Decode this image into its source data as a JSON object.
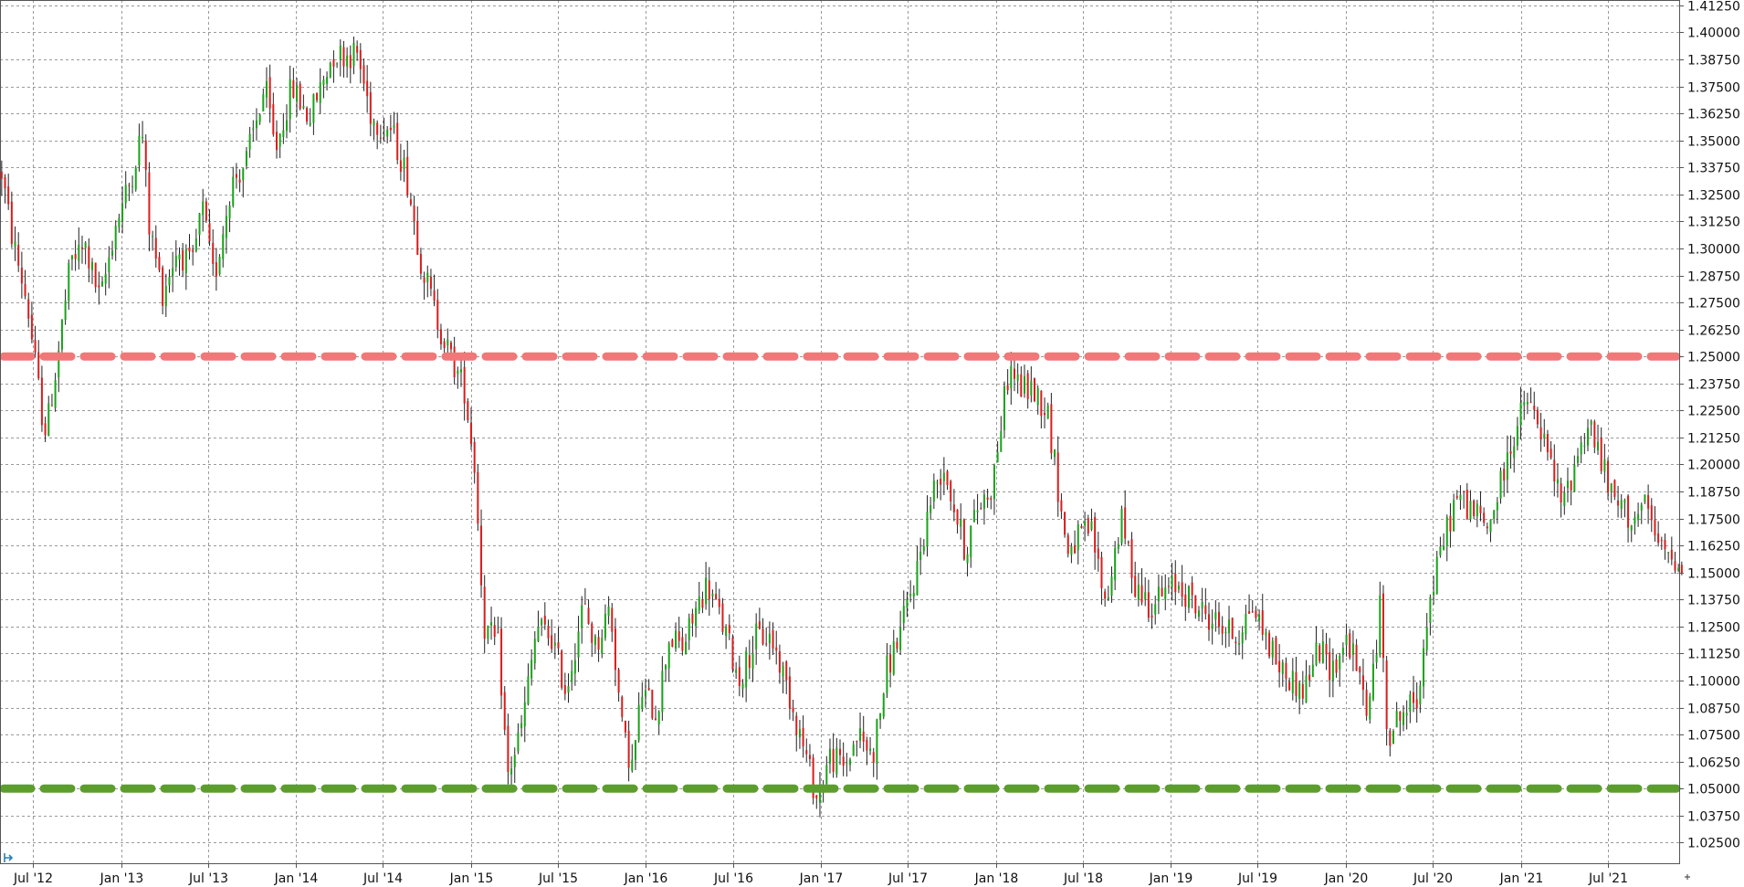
{
  "chart_data": {
    "type": "candlestick",
    "title": "",
    "xlabel": "",
    "ylabel": "",
    "ylim": [
      1.015,
      1.415
    ],
    "grid": true,
    "y_ticks": [
      "1.02500",
      "1.03750",
      "1.05000",
      "1.06250",
      "1.07500",
      "1.08750",
      "1.10000",
      "1.11250",
      "1.12500",
      "1.13750",
      "1.15000",
      "1.16250",
      "1.17500",
      "1.18750",
      "1.20000",
      "1.21250",
      "1.22500",
      "1.23750",
      "1.25000",
      "1.26250",
      "1.27500",
      "1.28750",
      "1.30000",
      "1.31250",
      "1.32500",
      "1.33750",
      "1.35000",
      "1.36250",
      "1.37500",
      "1.38750",
      "1.40000",
      "1.41250"
    ],
    "x_ticks": [
      "Jul '12",
      "Jan '13",
      "Jul '13",
      "Jan '14",
      "Jul '14",
      "Jan '15",
      "Jul '15",
      "Jan '16",
      "Jul '16",
      "Jan '17",
      "Jul '17",
      "Jan '18",
      "Jul '18",
      "Jan '19",
      "Jul '19",
      "Jan '20",
      "Jul '20",
      "Jan '21",
      "Jul '21"
    ],
    "x_range": [
      "2012-04-23",
      "2021-11-29"
    ],
    "up_color": "#1aa31a",
    "down_color": "#d81e1e",
    "close_path": [
      [
        "2012-04-23",
        1.335
      ],
      [
        "2012-05-15",
        1.305
      ],
      [
        "2012-06-15",
        1.275
      ],
      [
        "2012-07-15",
        1.225
      ],
      [
        "2012-07-25",
        1.215
      ],
      [
        "2012-08-15",
        1.245
      ],
      [
        "2012-09-15",
        1.295
      ],
      [
        "2012-10-15",
        1.3
      ],
      [
        "2012-11-15",
        1.275
      ],
      [
        "2012-12-15",
        1.31
      ],
      [
        "2013-01-15",
        1.33
      ],
      [
        "2013-02-10",
        1.355
      ],
      [
        "2013-02-25",
        1.31
      ],
      [
        "2013-03-25",
        1.28
      ],
      [
        "2013-04-25",
        1.3
      ],
      [
        "2013-05-25",
        1.29
      ],
      [
        "2013-06-15",
        1.32
      ],
      [
        "2013-07-10",
        1.285
      ],
      [
        "2013-08-15",
        1.33
      ],
      [
        "2013-09-15",
        1.34
      ],
      [
        "2013-10-25",
        1.375
      ],
      [
        "2013-11-15",
        1.345
      ],
      [
        "2013-12-20",
        1.375
      ],
      [
        "2014-01-25",
        1.36
      ],
      [
        "2014-03-15",
        1.39
      ],
      [
        "2014-05-05",
        1.39
      ],
      [
        "2014-06-05",
        1.36
      ],
      [
        "2014-07-15",
        1.355
      ],
      [
        "2014-08-15",
        1.335
      ],
      [
        "2014-09-15",
        1.295
      ],
      [
        "2014-10-15",
        1.27
      ],
      [
        "2014-11-15",
        1.25
      ],
      [
        "2014-12-15",
        1.235
      ],
      [
        "2015-01-05",
        1.2
      ],
      [
        "2015-01-25",
        1.125
      ],
      [
        "2015-02-25",
        1.115
      ],
      [
        "2015-03-15",
        1.055
      ],
      [
        "2015-04-15",
        1.08
      ],
      [
        "2015-05-15",
        1.125
      ],
      [
        "2015-06-15",
        1.12
      ],
      [
        "2015-07-15",
        1.095
      ],
      [
        "2015-08-20",
        1.135
      ],
      [
        "2015-09-15",
        1.115
      ],
      [
        "2015-10-15",
        1.135
      ],
      [
        "2015-11-10",
        1.075
      ],
      [
        "2015-12-01",
        1.06
      ],
      [
        "2015-12-20",
        1.095
      ],
      [
        "2016-01-20",
        1.085
      ],
      [
        "2016-02-15",
        1.12
      ],
      [
        "2016-03-15",
        1.115
      ],
      [
        "2016-04-15",
        1.135
      ],
      [
        "2016-05-05",
        1.145
      ],
      [
        "2016-06-15",
        1.12
      ],
      [
        "2016-07-10",
        1.1
      ],
      [
        "2016-08-15",
        1.12
      ],
      [
        "2016-09-15",
        1.12
      ],
      [
        "2016-10-15",
        1.1
      ],
      [
        "2016-11-15",
        1.075
      ],
      [
        "2016-12-20",
        1.045
      ],
      [
        "2017-01-15",
        1.065
      ],
      [
        "2017-02-15",
        1.06
      ],
      [
        "2017-03-15",
        1.075
      ],
      [
        "2017-04-15",
        1.065
      ],
      [
        "2017-05-15",
        1.105
      ],
      [
        "2017-06-15",
        1.125
      ],
      [
        "2017-07-15",
        1.15
      ],
      [
        "2017-08-15",
        1.185
      ],
      [
        "2017-09-10",
        1.2
      ],
      [
        "2017-10-25",
        1.16
      ],
      [
        "2017-11-20",
        1.18
      ],
      [
        "2017-12-20",
        1.19
      ],
      [
        "2018-01-25",
        1.245
      ],
      [
        "2018-02-20",
        1.235
      ],
      [
        "2018-03-15",
        1.235
      ],
      [
        "2018-04-15",
        1.225
      ],
      [
        "2018-05-25",
        1.16
      ],
      [
        "2018-06-15",
        1.165
      ],
      [
        "2018-07-15",
        1.17
      ],
      [
        "2018-08-15",
        1.135
      ],
      [
        "2018-09-15",
        1.175
      ],
      [
        "2018-10-15",
        1.145
      ],
      [
        "2018-11-15",
        1.135
      ],
      [
        "2018-12-15",
        1.14
      ],
      [
        "2019-01-15",
        1.145
      ],
      [
        "2019-02-15",
        1.135
      ],
      [
        "2019-03-15",
        1.13
      ],
      [
        "2019-04-15",
        1.125
      ],
      [
        "2019-05-15",
        1.12
      ],
      [
        "2019-06-15",
        1.135
      ],
      [
        "2019-07-15",
        1.12
      ],
      [
        "2019-08-15",
        1.105
      ],
      [
        "2019-10-01",
        1.095
      ],
      [
        "2019-11-01",
        1.115
      ],
      [
        "2019-12-01",
        1.105
      ],
      [
        "2020-01-01",
        1.12
      ],
      [
        "2020-02-15",
        1.085
      ],
      [
        "2020-03-10",
        1.135
      ],
      [
        "2020-03-25",
        1.075
      ],
      [
        "2020-04-25",
        1.085
      ],
      [
        "2020-05-25",
        1.09
      ],
      [
        "2020-06-15",
        1.13
      ],
      [
        "2020-07-20",
        1.165
      ],
      [
        "2020-08-15",
        1.185
      ],
      [
        "2020-09-15",
        1.18
      ],
      [
        "2020-10-20",
        1.17
      ],
      [
        "2020-11-15",
        1.19
      ],
      [
        "2020-12-15",
        1.215
      ],
      [
        "2021-01-10",
        1.23
      ],
      [
        "2021-02-15",
        1.21
      ],
      [
        "2021-03-25",
        1.18
      ],
      [
        "2021-04-25",
        1.205
      ],
      [
        "2021-05-20",
        1.22
      ],
      [
        "2021-06-15",
        1.2
      ],
      [
        "2021-07-05",
        1.185
      ],
      [
        "2021-08-15",
        1.175
      ],
      [
        "2021-09-15",
        1.18
      ],
      [
        "2021-10-15",
        1.16
      ],
      [
        "2021-11-29",
        1.155
      ]
    ],
    "annotations": [
      {
        "type": "hline",
        "y": 1.25,
        "color": "#f07878",
        "style": "dashed"
      },
      {
        "type": "hline",
        "y": 1.05,
        "color": "#5c9e2e",
        "style": "dashed"
      }
    ]
  }
}
